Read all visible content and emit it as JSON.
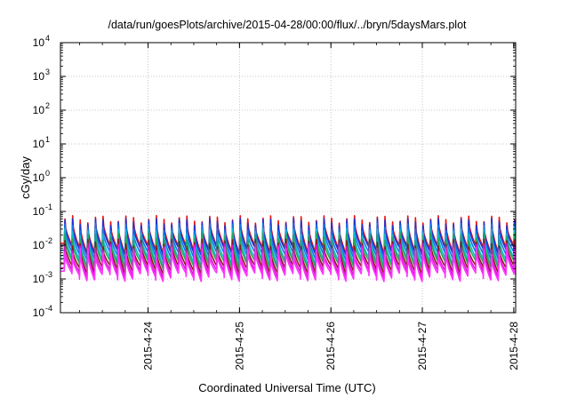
{
  "chart_data": {
    "type": "line",
    "title": "/data/run/goesPlots/archive/2015-04-28/00:00/flux/../bryn/5daysMars.plot",
    "xlabel": "Coordinated Universal Time (UTC)",
    "ylabel": "cGy/day",
    "y_scale": "log",
    "ylim": [
      0.0001,
      10000
    ],
    "y_ticks": [
      {
        "base": "10",
        "exp": "-4"
      },
      {
        "base": "10",
        "exp": "-3"
      },
      {
        "base": "10",
        "exp": "-2"
      },
      {
        "base": "10",
        "exp": "-1"
      },
      {
        "base": "10",
        "exp": "0"
      },
      {
        "base": "10",
        "exp": "1"
      },
      {
        "base": "10",
        "exp": "2"
      },
      {
        "base": "10",
        "exp": "3"
      },
      {
        "base": "10",
        "exp": "4"
      }
    ],
    "x_range": [
      "2015-04-23 01:00",
      "2015-04-28 00:30"
    ],
    "x_ticks": [
      "2015-4-24",
      "2015-4-25",
      "2015-4-26",
      "2015-4-27",
      "2015-4-28"
    ],
    "grid": true,
    "pattern": {
      "peaks_per_day": 12,
      "peak_times_hours_from_range_start": [
        1.0,
        3.0,
        5.0,
        7.0,
        9.0,
        11.0,
        13.0,
        15.0,
        17.0,
        19.0,
        21.0,
        23.0,
        25.0,
        27.0,
        29.0,
        31.0,
        33.0,
        35.0,
        37.0,
        39.0,
        41.0,
        43.0,
        45.0,
        47.0,
        49.0,
        51.0,
        53.0,
        55.0,
        57.0,
        59.0,
        61.0,
        63.0,
        65.0,
        67.0,
        69.0,
        71.0,
        73.0,
        75.0,
        77.0,
        79.0,
        81.0,
        83.0,
        85.0,
        87.0,
        89.0,
        91.0,
        93.0,
        95.0,
        97.0,
        99.0,
        101.0,
        103.0,
        105.0,
        107.0,
        109.0,
        111.0,
        113.0,
        115.0,
        117.0,
        119.0
      ]
    },
    "series": [
      {
        "color": "#ee1111",
        "peak": 0.06,
        "trough": 0.008
      },
      {
        "color": "#2233cc",
        "peak": 0.05,
        "trough": 0.007
      },
      {
        "color": "#1177ee",
        "peak": 0.035,
        "trough": 0.005
      },
      {
        "color": "#11bbcc",
        "peak": 0.025,
        "trough": 0.0035
      },
      {
        "color": "#22aa55",
        "peak": 0.018,
        "trough": 0.0028
      },
      {
        "color": "#8b1a1a",
        "peak": 0.012,
        "trough": 0.002
      },
      {
        "color": "#dd11dd",
        "peak": 0.009,
        "trough": 0.0015
      },
      {
        "color": "#ff33ff",
        "peak": 0.007,
        "trough": 0.0012
      }
    ]
  }
}
